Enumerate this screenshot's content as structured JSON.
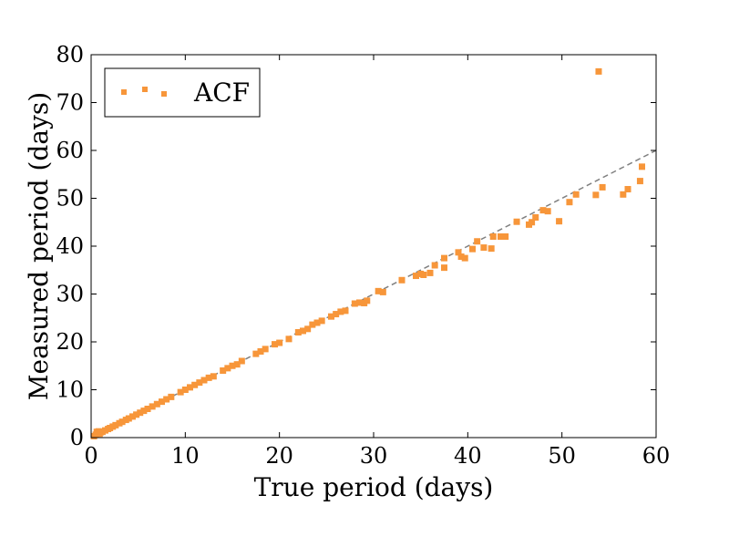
{
  "chart_data": {
    "type": "scatter",
    "title": "",
    "xlabel": "True period (days)",
    "ylabel": "Measured period (days)",
    "xlim": [
      0,
      60
    ],
    "ylim": [
      0,
      80
    ],
    "xticks": [
      0,
      10,
      20,
      30,
      40,
      50,
      60
    ],
    "yticks": [
      0,
      10,
      20,
      30,
      40,
      50,
      60,
      70,
      80
    ],
    "legend": {
      "position": "top-left",
      "entries": [
        "ACF"
      ]
    },
    "reference_line": {
      "label": "y = x",
      "style": "dashed",
      "color": "#808080",
      "points": [
        [
          0,
          0
        ],
        [
          60,
          60
        ]
      ]
    },
    "series": [
      {
        "name": "ACF",
        "marker": "square",
        "color": "#f7963a",
        "points": [
          [
            0.3,
            0.3
          ],
          [
            0.5,
            0.6
          ],
          [
            0.6,
            1.2
          ],
          [
            0.7,
            0.9
          ],
          [
            0.8,
            1.3
          ],
          [
            0.9,
            0.8
          ],
          [
            1.0,
            1.1
          ],
          [
            1.2,
            1.2
          ],
          [
            1.5,
            1.5
          ],
          [
            1.8,
            1.8
          ],
          [
            2.0,
            2.0
          ],
          [
            2.3,
            2.3
          ],
          [
            2.6,
            2.6
          ],
          [
            3.0,
            3.0
          ],
          [
            3.3,
            3.3
          ],
          [
            3.7,
            3.7
          ],
          [
            4.0,
            4.0
          ],
          [
            4.4,
            4.4
          ],
          [
            4.8,
            4.8
          ],
          [
            5.2,
            5.2
          ],
          [
            5.6,
            5.6
          ],
          [
            6.0,
            6.0
          ],
          [
            6.5,
            6.5
          ],
          [
            7.0,
            7.0
          ],
          [
            7.5,
            7.5
          ],
          [
            8.0,
            8.0
          ],
          [
            8.5,
            8.5
          ],
          [
            9.5,
            9.5
          ],
          [
            10.0,
            10.0
          ],
          [
            10.5,
            10.5
          ],
          [
            11.0,
            11.0
          ],
          [
            11.5,
            11.5
          ],
          [
            12.0,
            12.0
          ],
          [
            12.5,
            12.5
          ],
          [
            13.0,
            12.8
          ],
          [
            14.0,
            14.0
          ],
          [
            14.5,
            14.5
          ],
          [
            15.0,
            15.0
          ],
          [
            15.5,
            15.3
          ],
          [
            16.0,
            16.0
          ],
          [
            17.5,
            17.5
          ],
          [
            18.0,
            18.0
          ],
          [
            18.5,
            18.5
          ],
          [
            19.5,
            19.5
          ],
          [
            20.0,
            19.8
          ],
          [
            21.0,
            20.6
          ],
          [
            22.0,
            22.0
          ],
          [
            22.5,
            22.3
          ],
          [
            23.0,
            22.7
          ],
          [
            23.5,
            23.6
          ],
          [
            24.0,
            24.0
          ],
          [
            24.5,
            24.4
          ],
          [
            25.5,
            25.3
          ],
          [
            26.0,
            25.8
          ],
          [
            26.5,
            26.3
          ],
          [
            27.0,
            26.5
          ],
          [
            28.0,
            28.0
          ],
          [
            28.5,
            28.2
          ],
          [
            29.0,
            28.1
          ],
          [
            29.3,
            28.6
          ],
          [
            30.5,
            30.6
          ],
          [
            31.0,
            30.4
          ],
          [
            33.0,
            32.9
          ],
          [
            34.5,
            33.8
          ],
          [
            35.0,
            34.2
          ],
          [
            35.3,
            34.0
          ],
          [
            36.0,
            34.4
          ],
          [
            36.5,
            36.0
          ],
          [
            37.5,
            37.5
          ],
          [
            37.5,
            35.5
          ],
          [
            39.0,
            38.7
          ],
          [
            39.3,
            37.8
          ],
          [
            39.7,
            37.5
          ],
          [
            40.5,
            39.4
          ],
          [
            41.0,
            41.0
          ],
          [
            41.7,
            39.7
          ],
          [
            42.5,
            39.5
          ],
          [
            42.7,
            42.0
          ],
          [
            43.5,
            42.0
          ],
          [
            44.0,
            42.0
          ],
          [
            45.2,
            45.1
          ],
          [
            46.5,
            44.5
          ],
          [
            46.8,
            45.0
          ],
          [
            47.2,
            46.0
          ],
          [
            48.0,
            47.5
          ],
          [
            48.5,
            47.3
          ],
          [
            49.7,
            45.2
          ],
          [
            50.8,
            49.2
          ],
          [
            51.5,
            50.8
          ],
          [
            53.6,
            50.7
          ],
          [
            54.3,
            52.3
          ],
          [
            53.9,
            76.5
          ],
          [
            56.5,
            50.8
          ],
          [
            57.0,
            51.9
          ],
          [
            58.3,
            53.6
          ],
          [
            58.5,
            56.6
          ]
        ]
      }
    ]
  }
}
